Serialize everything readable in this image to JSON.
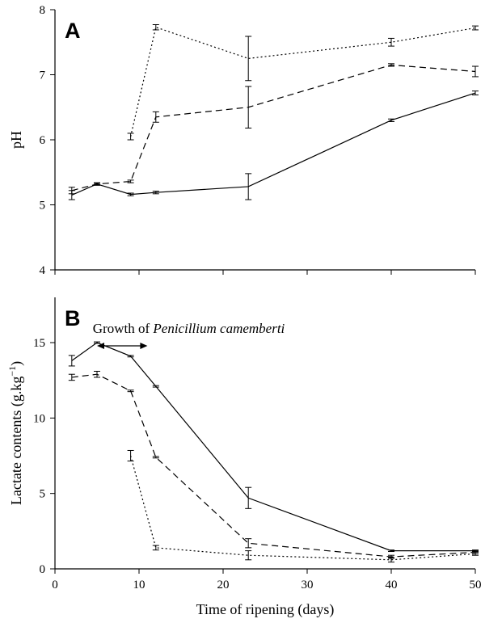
{
  "chart_data": [
    {
      "type": "line",
      "panel_label": "A",
      "title": "",
      "xlabel": "",
      "ylabel": "pH",
      "xlim": [
        0,
        50
      ],
      "ylim": [
        4,
        8
      ],
      "xticks": [
        0,
        10,
        20,
        30,
        40,
        50
      ],
      "yticks": [
        4,
        5,
        6,
        7,
        8
      ],
      "ytick_labels": [
        "4",
        "5",
        "6",
        "7",
        "8"
      ],
      "grid": false,
      "series": [
        {
          "style": "solid",
          "x": [
            2,
            5,
            9,
            12,
            23,
            40,
            50
          ],
          "y": [
            5.15,
            5.32,
            5.16,
            5.19,
            5.28,
            6.3,
            6.72
          ],
          "err": [
            0.07,
            0.02,
            0.02,
            0.02,
            0.2,
            0.02,
            0.03
          ]
        },
        {
          "style": "dashed",
          "x": [
            2,
            5,
            9,
            12,
            23,
            40,
            50
          ],
          "y": [
            5.22,
            5.32,
            5.36,
            6.35,
            6.5,
            7.15,
            7.05
          ],
          "err": [
            0.05,
            0.01,
            0.02,
            0.08,
            0.32,
            0.02,
            0.08
          ]
        },
        {
          "style": "dotted",
          "x": [
            9,
            12,
            23,
            40,
            50
          ],
          "y": [
            6.05,
            7.73,
            7.25,
            7.5,
            7.72
          ],
          "err": [
            0.05,
            0.04,
            0.34,
            0.06,
            0.03
          ]
        }
      ]
    },
    {
      "type": "line",
      "panel_label": "B",
      "title": "",
      "xlabel": "Time of ripening (days)",
      "ylabel_main": "Lactate contents (g.kg",
      "ylabel_sup": "−1",
      "ylabel_end": ")",
      "xlim": [
        0,
        50
      ],
      "ylim": [
        0,
        18
      ],
      "xticks": [
        0,
        10,
        20,
        30,
        40,
        50
      ],
      "xtick_labels": [
        "0",
        "10",
        "20",
        "30",
        "40",
        "50"
      ],
      "yticks": [
        0,
        5,
        10,
        15
      ],
      "ytick_labels": [
        "0",
        "5",
        "10",
        "15"
      ],
      "grid": false,
      "annotation": {
        "text_plain": "Growth of ",
        "text_italic": "Penicillium camemberti",
        "arrow_x": [
          5,
          11
        ]
      },
      "series": [
        {
          "style": "solid",
          "x": [
            2,
            5,
            9,
            12,
            23,
            40,
            50
          ],
          "y": [
            13.8,
            15.0,
            14.1,
            12.1,
            4.7,
            1.2,
            1.2
          ],
          "err": [
            0.35,
            0.05,
            0.05,
            0.05,
            0.7,
            0.05,
            0.05
          ]
        },
        {
          "style": "dashed",
          "x": [
            2,
            5,
            9,
            12,
            23,
            40,
            50
          ],
          "y": [
            12.7,
            12.9,
            11.8,
            7.4,
            1.7,
            0.8,
            1.1
          ],
          "err": [
            0.2,
            0.2,
            0.05,
            0.05,
            0.3,
            0.1,
            0.1
          ]
        },
        {
          "style": "dotted",
          "x": [
            9,
            12,
            23,
            40,
            50
          ],
          "y": [
            7.5,
            1.4,
            0.9,
            0.6,
            1.0
          ],
          "err": [
            0.35,
            0.15,
            0.3,
            0.15,
            0.1
          ]
        }
      ]
    }
  ]
}
